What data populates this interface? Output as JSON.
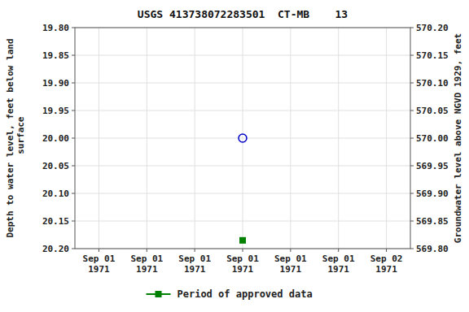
{
  "chart_data": {
    "type": "scatter",
    "title": "USGS 413738072283501  CT-MB    13",
    "y_label": "Depth to water level, feet below land\n surface",
    "y2_label": "Groundwater level above NGVD 1929, feet",
    "categories": [
      "Sep 01\n1971",
      "Sep 01\n1971",
      "Sep 01\n1971",
      "Sep 01\n1971",
      "Sep 01\n1971",
      "Sep 01\n1971",
      "Sep 02\n1971"
    ],
    "series": [
      {
        "name": "Period of approved data",
        "color": "#008000",
        "marker": "square",
        "values": [
          null,
          null,
          null,
          20.185,
          null,
          null,
          null
        ]
      },
      {
        "color": "#0000cc",
        "marker": "hollow-circle",
        "values": [
          null,
          null,
          null,
          20.0,
          null,
          null,
          null
        ]
      }
    ],
    "ylim": [
      20.2,
      19.8
    ],
    "yticks": [
      {
        "value": 19.8,
        "label": "19.80"
      },
      {
        "value": 19.85,
        "label": "19.85"
      },
      {
        "value": 19.9,
        "label": "19.90"
      },
      {
        "value": 19.95,
        "label": "19.95"
      },
      {
        "value": 20.0,
        "label": "20.00"
      },
      {
        "value": 20.05,
        "label": "20.05"
      },
      {
        "value": 20.1,
        "label": "20.10"
      },
      {
        "value": 20.15,
        "label": "20.15"
      },
      {
        "value": 20.2,
        "label": "20.20"
      }
    ],
    "y2lim": [
      569.8,
      570.2
    ],
    "y2ticks": [
      {
        "value": 570.2,
        "label": "570.20"
      },
      {
        "value": 570.15,
        "label": "570.15"
      },
      {
        "value": 570.1,
        "label": "570.10"
      },
      {
        "value": 570.05,
        "label": "570.05"
      },
      {
        "value": 570.0,
        "label": "570.00"
      },
      {
        "value": 569.95,
        "label": "569.95"
      },
      {
        "value": 569.9,
        "label": "569.90"
      },
      {
        "value": 569.85,
        "label": "569.85"
      },
      {
        "value": 569.8,
        "label": "569.80"
      }
    ],
    "grid": true,
    "legend": "bottom"
  }
}
